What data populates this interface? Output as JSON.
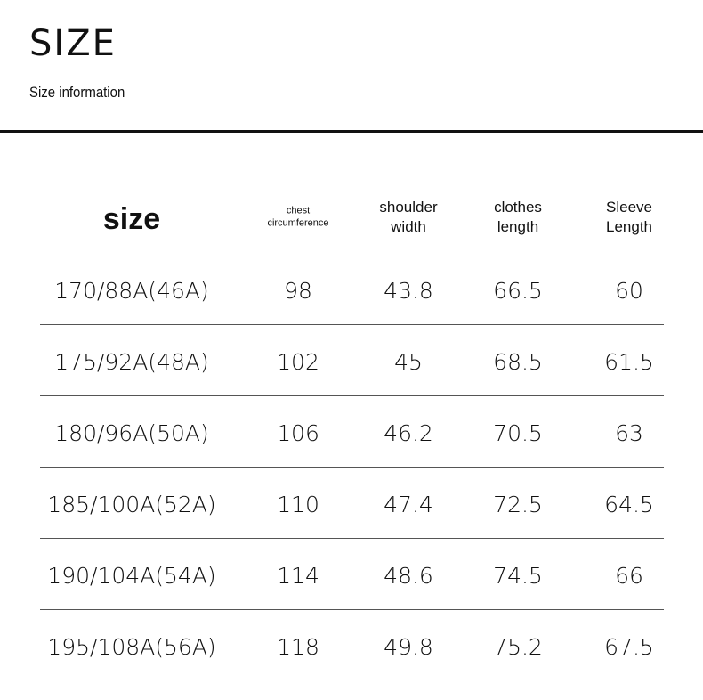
{
  "header": {
    "title": "SIZE",
    "subtitle": "Size information"
  },
  "table": {
    "columns": [
      "size",
      "chest circumference",
      "shoulder width",
      "clothes length",
      "Sleeve Length"
    ],
    "rows": [
      [
        "170/88A(46A)",
        98,
        43.8,
        66.5,
        60
      ],
      [
        "175/92A(48A)",
        102,
        45,
        68.5,
        61.5
      ],
      [
        "180/96A(50A)",
        106,
        46.2,
        70.5,
        63
      ],
      [
        "185/100A(52A)",
        110,
        47.4,
        72.5,
        64.5
      ],
      [
        "190/104A(54A)",
        114,
        48.6,
        74.5,
        66
      ],
      [
        "195/108A(56A)",
        118,
        49.8,
        75.2,
        67.5
      ]
    ]
  }
}
